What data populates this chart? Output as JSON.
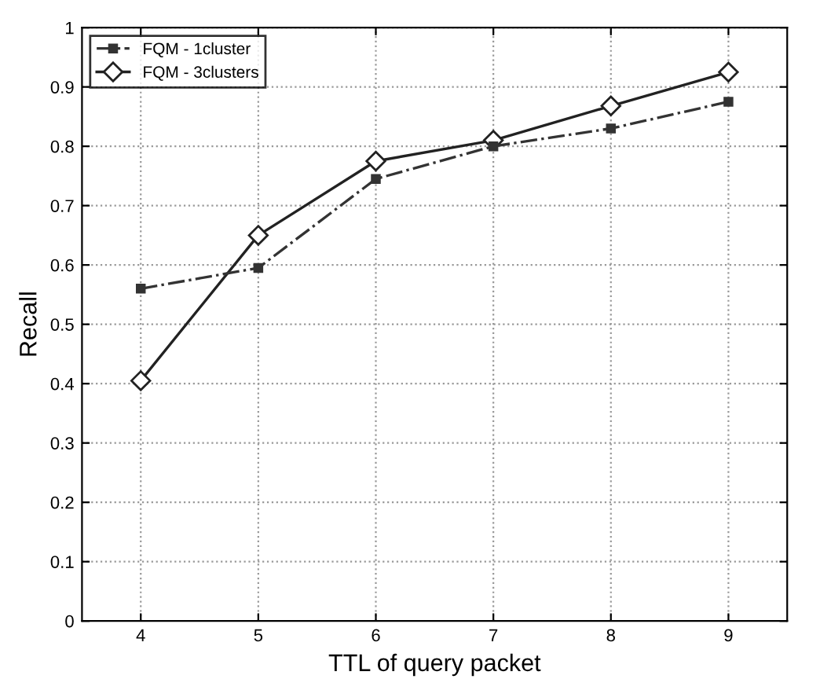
{
  "chart_data": {
    "type": "line",
    "xlabel": "TTL of query packet",
    "ylabel": "Recall",
    "x": [
      4,
      5,
      6,
      7,
      8,
      9
    ],
    "series": [
      {
        "name": "FQM - 1cluster",
        "color": "#333333",
        "values": [
          0.56,
          0.595,
          0.745,
          0.8,
          0.83,
          0.875
        ],
        "marker": "square",
        "line_style": "dashed"
      },
      {
        "name": "FQM - 3clusters",
        "color": "#222222",
        "values": [
          0.405,
          0.65,
          0.775,
          0.81,
          0.868,
          0.925
        ],
        "marker": "diamond",
        "line_style": "solid"
      }
    ],
    "xlim": [
      3.5,
      9.5
    ],
    "ylim": [
      0,
      1
    ],
    "xticks": [
      4,
      5,
      6,
      7,
      8,
      9
    ],
    "yticks": [
      0,
      0.1,
      0.2,
      0.3,
      0.4,
      0.5,
      0.6,
      0.7,
      0.8,
      0.9,
      1
    ],
    "grid": true,
    "legend": "top left"
  }
}
